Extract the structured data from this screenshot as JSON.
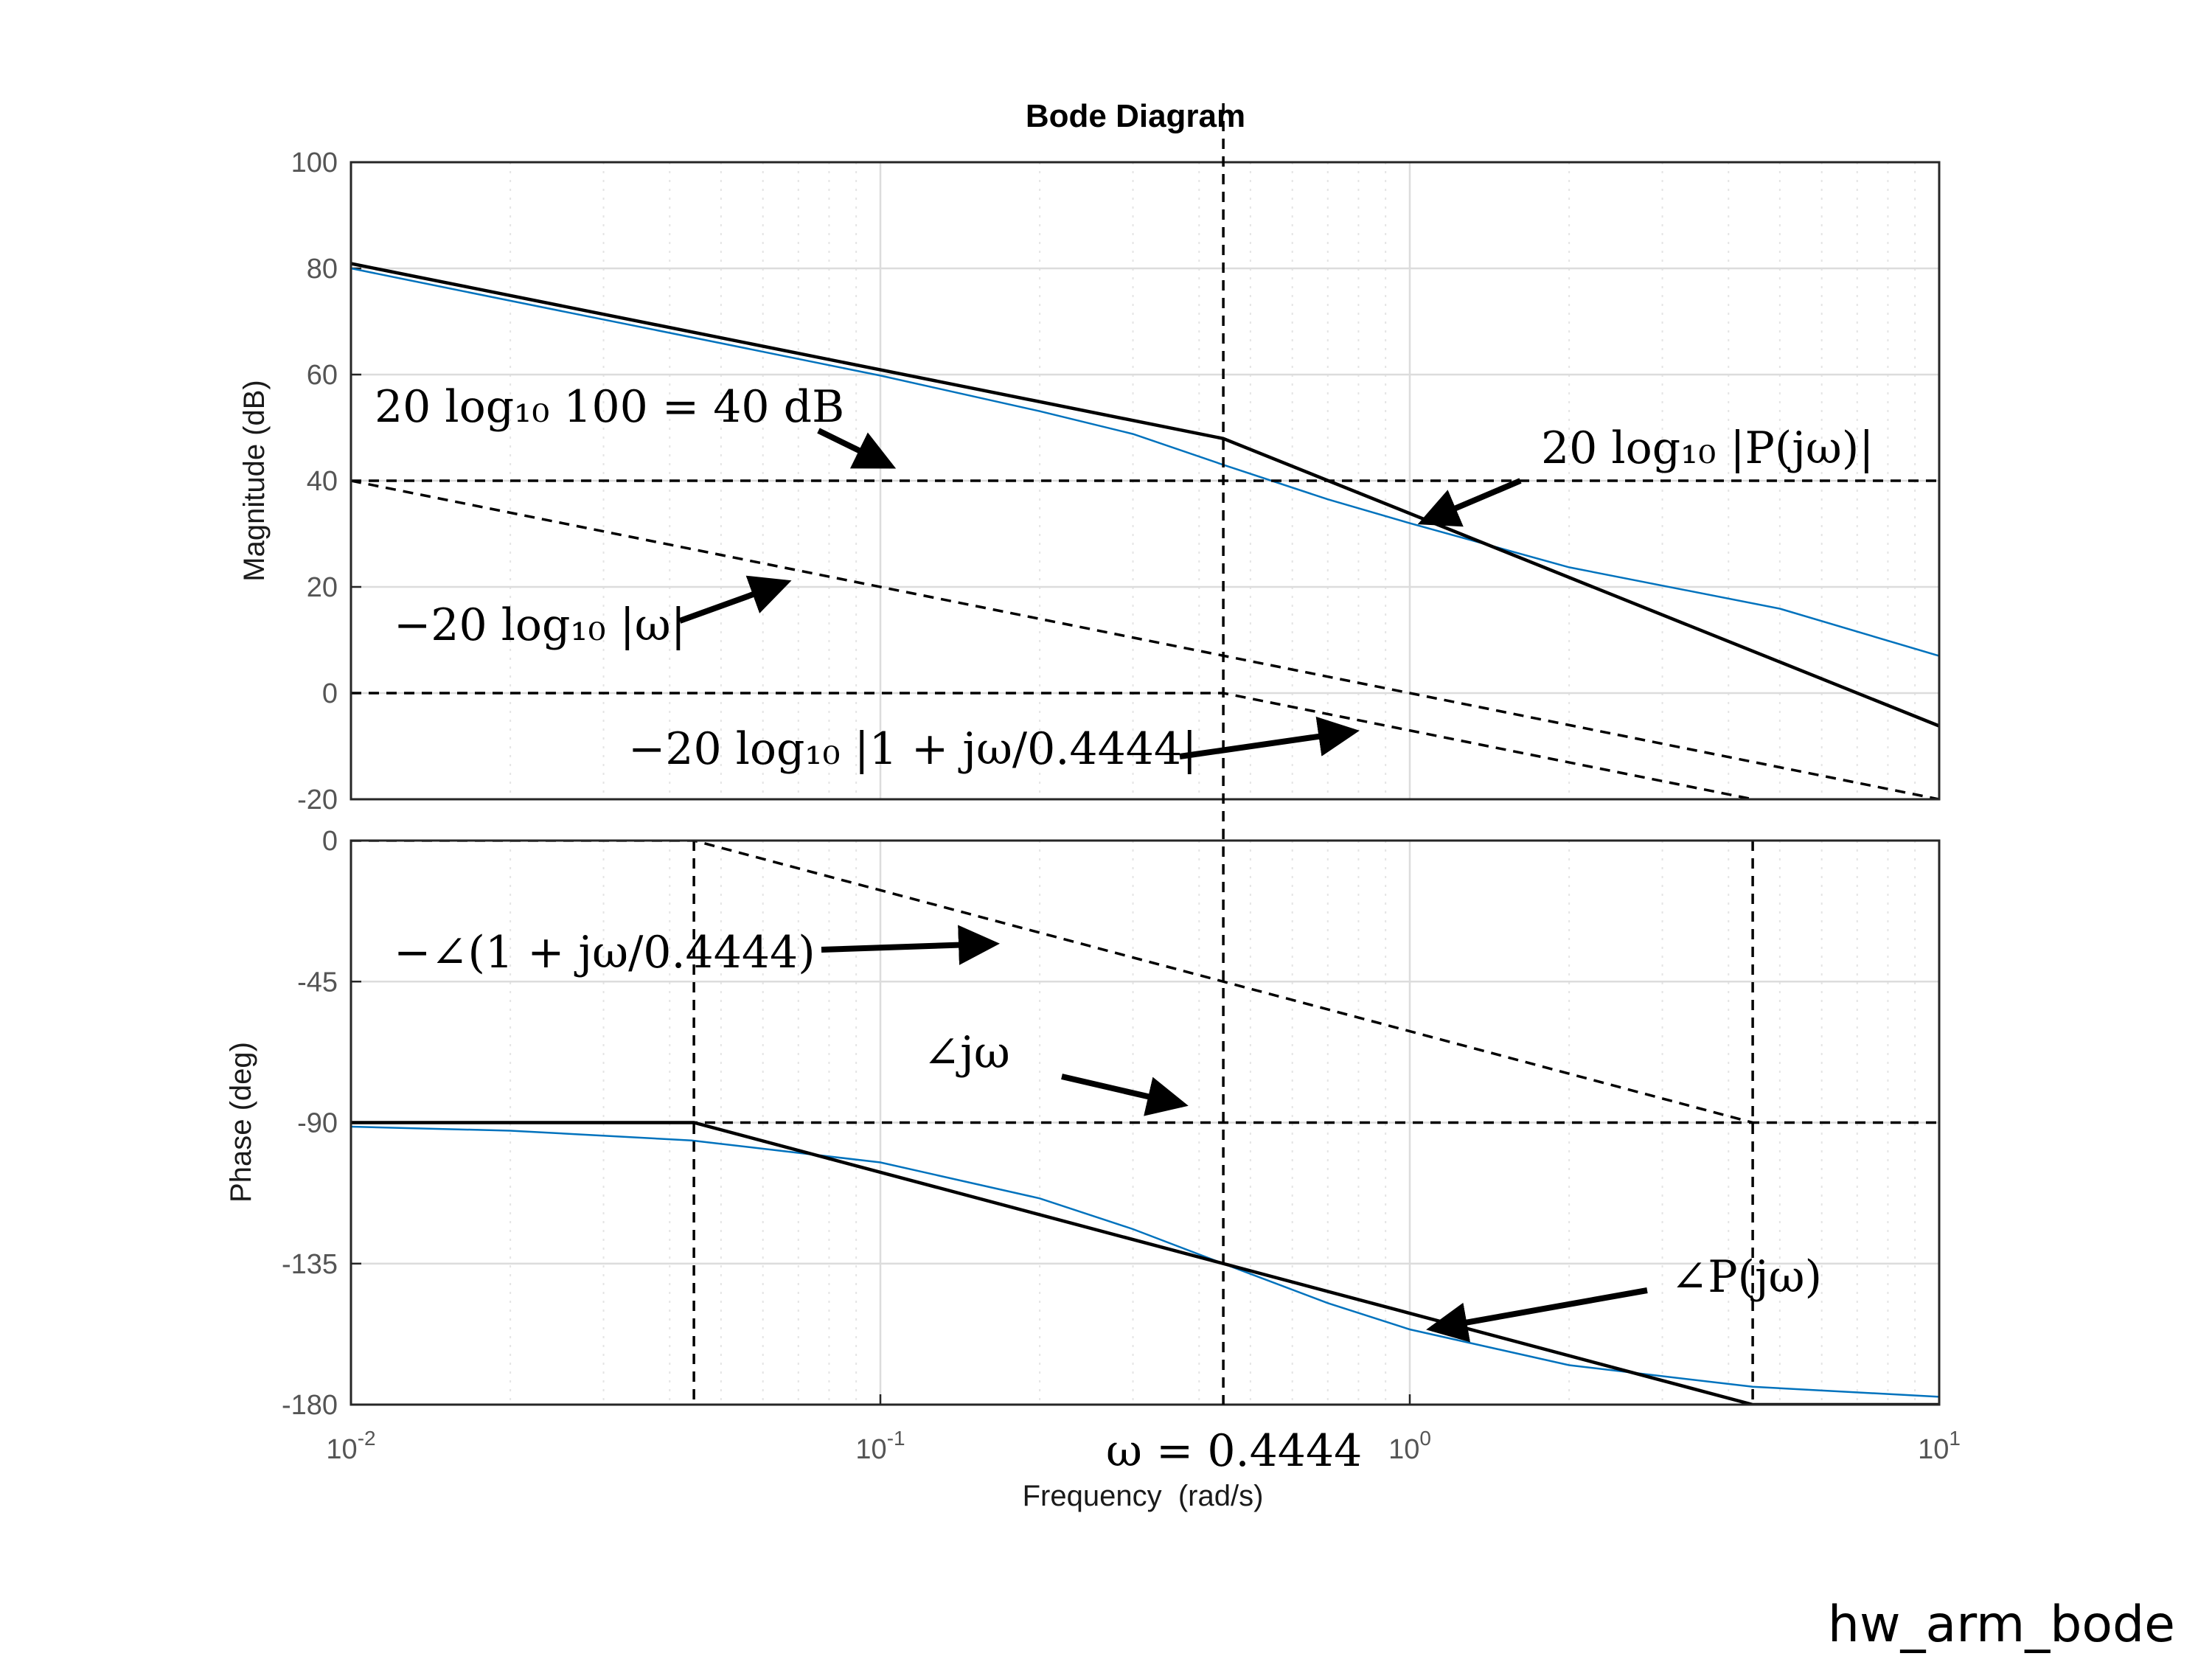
{
  "chart_data": {
    "type": "line",
    "title": "Bode Diagram",
    "xlabel": "Frequency  (rad/s)",
    "xscale": "log",
    "xlim": [
      0.01,
      10
    ],
    "x_ticks": [
      {
        "value": 0.01,
        "base": "10",
        "exp": "-2"
      },
      {
        "value": 0.1,
        "base": "10",
        "exp": "-1"
      },
      {
        "value": 1,
        "base": "10",
        "exp": "0"
      },
      {
        "value": 10,
        "base": "10",
        "exp": "1"
      }
    ],
    "grid": true,
    "corner_frequency": 0.4444,
    "magnitude": {
      "ylabel": "Magnitude (dB)",
      "ylim": [
        -20,
        100
      ],
      "yticks": [
        "100",
        "80",
        "60",
        "40",
        "20",
        "0",
        "-20"
      ],
      "series": [
        {
          "style": "blue",
          "color": "#0072BD",
          "x": [
            0.01,
            0.02,
            0.05,
            0.1,
            0.2,
            0.3,
            0.4444,
            0.7,
            1,
            2,
            5,
            10
          ],
          "y": [
            80,
            73.9,
            65.9,
            59.8,
            53.1,
            48.8,
            43.0,
            36.5,
            32.0,
            23.7,
            15.9,
            7.0
          ]
        },
        {
          "style": "solid-black",
          "color": "#000000",
          "x": [
            0.01,
            0.4444,
            10
          ],
          "y": [
            80.9,
            47.95,
            -6.2
          ]
        },
        {
          "style": "dashed",
          "color": "#000000",
          "x": [
            0.01,
            10
          ],
          "y": [
            40,
            40
          ]
        },
        {
          "style": "dashed",
          "color": "#000000",
          "x": [
            0.01,
            10
          ],
          "y": [
            40,
            -20
          ]
        },
        {
          "style": "dashed",
          "color": "#000000",
          "x": [
            0.01,
            0.4444,
            6
          ],
          "y": [
            0,
            0,
            -22.6
          ]
        }
      ]
    },
    "phase": {
      "ylabel": "Phase (deg)",
      "ylim": [
        -180,
        0
      ],
      "yticks": [
        "0",
        "-45",
        "-90",
        "-135",
        "-180"
      ],
      "series": [
        {
          "style": "blue",
          "color": "#0072BD",
          "x": [
            0.01,
            0.02,
            0.044,
            0.1,
            0.2,
            0.3,
            0.4444,
            0.7,
            1,
            2,
            4.444,
            10
          ],
          "y": [
            -91.3,
            -92.6,
            -95.7,
            -102.7,
            -114.2,
            -124.0,
            -135,
            -147.6,
            -156.0,
            -167.4,
            -174.3,
            -177.5
          ]
        },
        {
          "style": "solid-black",
          "color": "#000000",
          "x": [
            0.01,
            0.04444,
            4.444,
            10
          ],
          "y": [
            -90,
            -90,
            -180,
            -180
          ]
        },
        {
          "style": "dashed",
          "color": "#000000",
          "x": [
            0.01,
            0.04444,
            4.444
          ],
          "y": [
            0,
            0,
            -90
          ]
        },
        {
          "style": "dashed",
          "color": "#000000",
          "x": [
            0.01,
            10
          ],
          "y": [
            -90,
            -90
          ]
        }
      ],
      "vlines": [
        0.04444,
        4.444
      ]
    },
    "annotations": {
      "mag_gain": "20 log₁₀ 100 = 40 dB",
      "mag_integrator": "−20 log₁₀ |ω|",
      "mag_pole": "−20 log₁₀ |1 + jω/0.4444|",
      "mag_plant": "20 log₁₀ |P(jω)|",
      "phase_pole": "−∠(1 + jω/0.4444)",
      "phase_integrator": "∠jω",
      "phase_plant": "∠P(jω)",
      "corner_label": "ω = 0.4444"
    }
  },
  "footer_label": "hw_arm_bode"
}
